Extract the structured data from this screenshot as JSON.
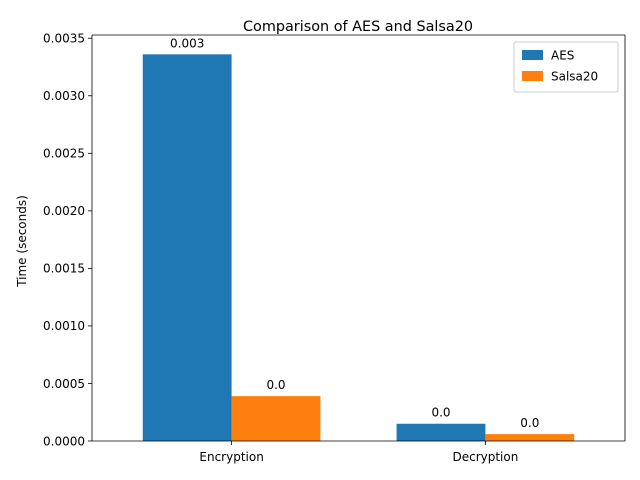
{
  "chart_data": {
    "type": "bar",
    "title": "Comparison of AES and Salsa20",
    "xlabel": "",
    "ylabel": "Time (seconds)",
    "categories": [
      "Encryption",
      "Decryption"
    ],
    "series": [
      {
        "name": "AES",
        "values": [
          0.00336,
          0.00015
        ],
        "labels": [
          "0.003",
          "0.0"
        ],
        "color": "#1f77b4"
      },
      {
        "name": "Salsa20",
        "values": [
          0.00039,
          6e-05
        ],
        "labels": [
          "0.0",
          "0.0"
        ],
        "color": "#ff7f0e"
      }
    ],
    "ylim": [
      0,
      0.003528
    ],
    "yticks": [
      0,
      0.0005,
      0.001,
      0.0015,
      0.002,
      0.0025,
      0.003,
      0.0035
    ],
    "ytick_labels": [
      "0.0000",
      "0.0005",
      "0.0010",
      "0.0015",
      "0.0020",
      "0.0025",
      "0.0030",
      "0.0035"
    ],
    "legend_position": "top-right",
    "grid": false
  }
}
